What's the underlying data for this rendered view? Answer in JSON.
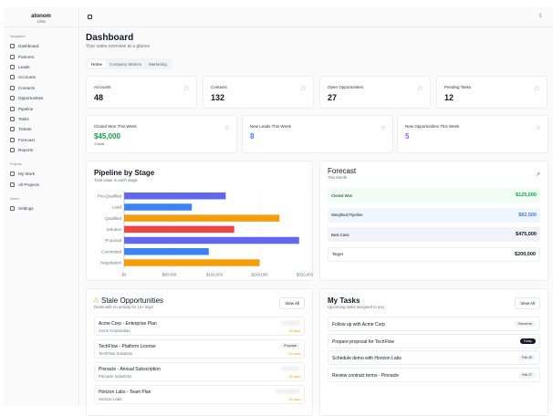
{
  "brand": {
    "name": "atonom",
    "sub": "CRM"
  },
  "sidebar": {
    "sections": [
      {
        "title": "Navigation",
        "items": [
          "Dashboard",
          "Partners",
          "Leads",
          "Accounts",
          "Contacts",
          "Opportunities",
          "Pipeline",
          "Tasks",
          "Tickets",
          "Forecast",
          "Reports"
        ]
      },
      {
        "title": "Projects",
        "items": [
          "My Work",
          "All Projects"
        ]
      },
      {
        "title": "Admin",
        "items": [
          "Settings"
        ]
      }
    ]
  },
  "header": {
    "title": "Dashboard",
    "subtitle": "Your sales overview at a glance",
    "toggle_icon": "sidebar-toggle-icon",
    "theme_icon": "moon-icon"
  },
  "tabs": [
    {
      "label": "Home",
      "active": true
    },
    {
      "label": "Company Metrics"
    },
    {
      "label": "Marketing"
    }
  ],
  "stats": [
    {
      "label": "Accounts",
      "value": "48",
      "icon": "building-icon"
    },
    {
      "label": "Contacts",
      "value": "132",
      "icon": "users-icon"
    },
    {
      "label": "Open Opportunities",
      "value": "27",
      "icon": "target-icon"
    },
    {
      "label": "Pending Tasks",
      "value": "12",
      "icon": "clipboard-icon"
    }
  ],
  "weekly": [
    {
      "label": "Closed Won This Week",
      "value": "$45,000",
      "note": "3 deals",
      "color": "#16a34a",
      "icon": "trophy-icon"
    },
    {
      "label": "New Leads This Week",
      "value": "8",
      "color": "#3b82f6",
      "icon": "user-plus-icon"
    },
    {
      "label": "New Opportunities This Week",
      "value": "5",
      "color": "#a855f7",
      "icon": "rocket-icon"
    }
  ],
  "chart_data": {
    "type": "bar",
    "orientation": "horizontal",
    "title": "Pipeline by Stage",
    "subtitle": "Total value in each stage",
    "categories": [
      "Pre-Qualified",
      "Lead",
      "Qualified",
      "Solution",
      "Proposal",
      "Committed",
      "Negotiation"
    ],
    "values": [
      180000,
      120000,
      275000,
      195000,
      310000,
      150000,
      240000
    ],
    "colors": [
      "#6366f1",
      "#3b82f6",
      "#f59e0b",
      "#ef4444",
      "#6366f1",
      "#3b82f6",
      "#f59e0b"
    ],
    "xlim": [
      0,
      320000
    ],
    "ticks": [
      "$0",
      "$80,000",
      "$160,000",
      "$240,000",
      "$320,000"
    ],
    "tick_values": [
      0,
      80000,
      160000,
      240000,
      320000
    ],
    "grid": true
  },
  "forecast": {
    "title": "Forecast",
    "subtitle": "This Month",
    "icon": "trending-up-icon",
    "rows": [
      {
        "label": "Closed Won",
        "value": "$125,000",
        "bg": "#f0fdf4",
        "color": "#16a34a"
      },
      {
        "label": "Weighted Pipeline",
        "value": "$82,500",
        "bg": "#eff6ff",
        "color": "#3b82f6"
      },
      {
        "label": "Best Case",
        "value": "$475,000",
        "bg": "#f1f3f6",
        "color": "#111827"
      },
      {
        "label": "Target",
        "value": "$200,000",
        "bg": "#ffffff",
        "color": "#111827"
      }
    ]
  },
  "stale": {
    "title": "Stale Opportunities",
    "subtitle": "Deals with no activity for 14+ days",
    "view_all": "View All",
    "items": [
      {
        "title": "Acme Corp - Enterprise Plan",
        "company": "Acme Corporation",
        "stage": "Qualified",
        "days": "28 days"
      },
      {
        "title": "TechFlow - Platform License",
        "company": "TechFlow Solutions",
        "stage": "Proposal",
        "days": "21 days"
      },
      {
        "title": "Pinnacle - Annual Subscription",
        "company": "Pinnacle Industries",
        "stage": "Solution",
        "days": "18 days"
      },
      {
        "title": "Horizon Labs - Team Plan",
        "company": "Horizon Labs",
        "stage": "Pre-Qualified",
        "days": "16 days"
      }
    ]
  },
  "tasks": {
    "title": "My Tasks",
    "subtitle": "Upcoming tasks assigned to you",
    "view_all": "View All",
    "items": [
      {
        "title": "Follow up with Acme Corp",
        "due": "Tomorrow"
      },
      {
        "title": "Prepare proposal for TechFlow",
        "due": "Today"
      },
      {
        "title": "Schedule demo with Horizon Labs",
        "due": "Feb 25"
      },
      {
        "title": "Review contract terms - Pinnacle",
        "due": "Feb 27"
      }
    ]
  }
}
